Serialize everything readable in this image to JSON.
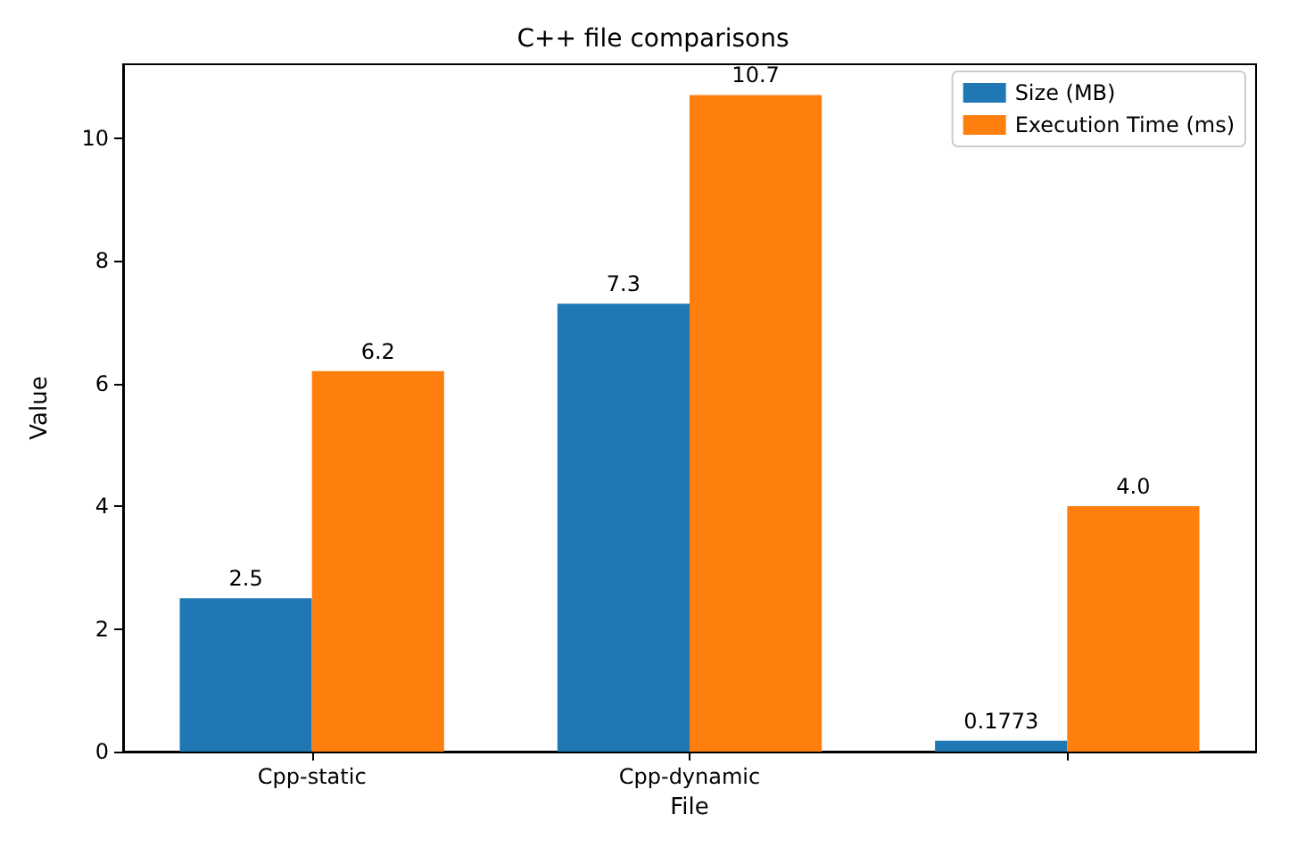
{
  "chart_data": {
    "type": "bar",
    "title": "C++ file comparisons",
    "xlabel": "File",
    "ylabel": "Value",
    "categories": [
      "Cpp-static",
      "Cpp-dynamic",
      null
    ],
    "series": [
      {
        "name": "Size (MB)",
        "color": "#1f77b4",
        "values": [
          2.5,
          7.3,
          0.1773
        ],
        "value_labels": [
          "2.5",
          "7.3",
          "0.1773"
        ]
      },
      {
        "name": "Execution Time (ms)",
        "color": "#ff7f0e",
        "values": [
          6.2,
          10.7,
          4.0
        ],
        "value_labels": [
          "6.2",
          "10.7",
          "4.0"
        ]
      }
    ],
    "ylim": [
      0,
      11.2
    ],
    "yticks": [
      0,
      2,
      4,
      6,
      8,
      10
    ],
    "grid": false,
    "legend": "top right"
  }
}
